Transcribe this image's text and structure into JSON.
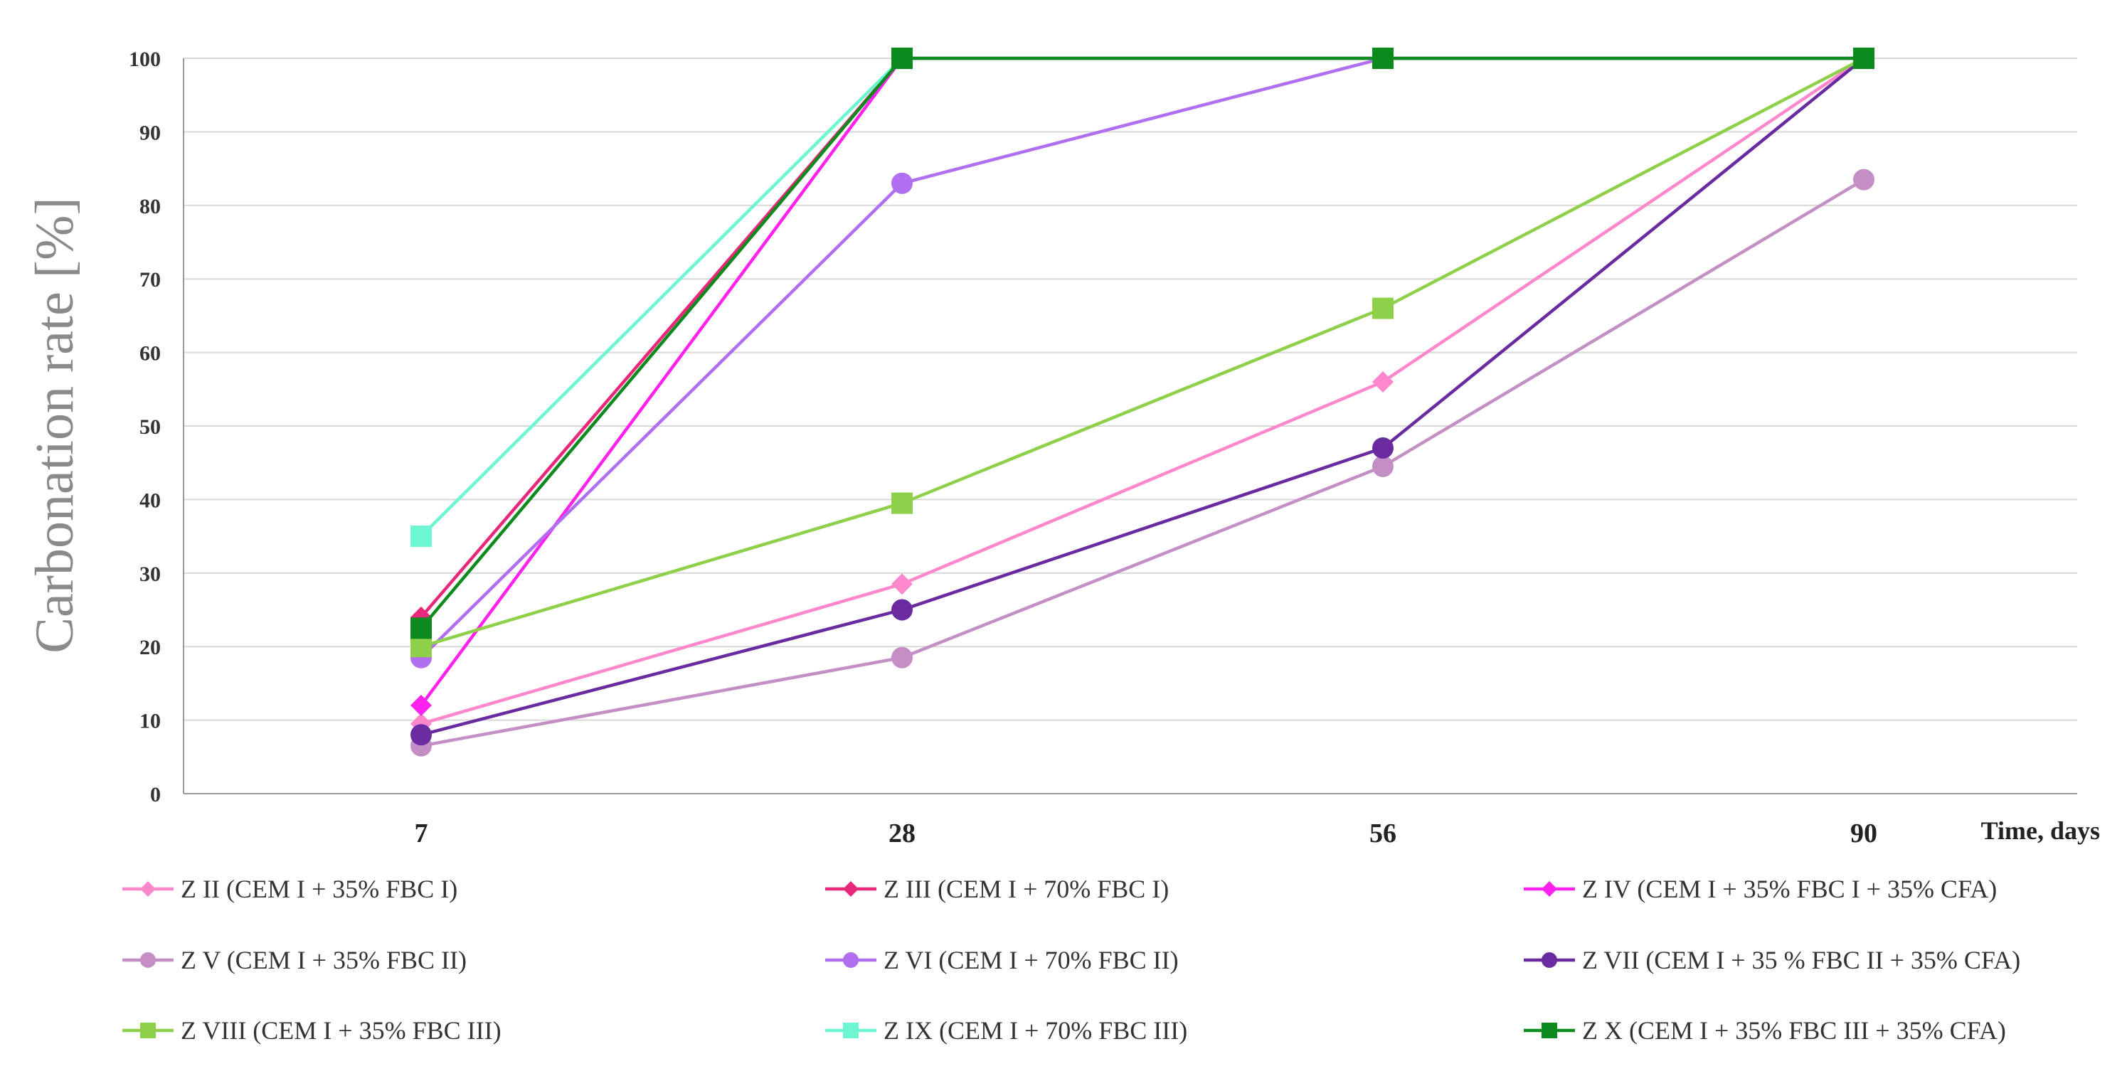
{
  "chart_data": {
    "type": "line",
    "xlabel": "Time, days",
    "ylabel": "Carbonation rate [%]",
    "x": [
      7,
      28,
      56,
      90
    ],
    "x_tick_labels": [
      "7",
      "28",
      "56",
      "90"
    ],
    "ylim": [
      0,
      100
    ],
    "y_ticks": [
      "0",
      "10",
      "20",
      "30",
      "40",
      "50",
      "60",
      "70",
      "80",
      "90",
      "100"
    ],
    "grid": "horizontal",
    "legend_position": "bottom",
    "series": [
      {
        "name": "Z II (CEM I + 35% FBC I)",
        "values": [
          9.5,
          28.5,
          56,
          100
        ],
        "color": "#ff88cc",
        "marker": "diamond"
      },
      {
        "name": "Z III (CEM I + 70% FBC I)",
        "values": [
          24,
          100,
          100,
          100
        ],
        "color": "#e8287a",
        "marker": "diamond"
      },
      {
        "name": "Z IV (CEM I + 35% FBC I + 35% CFA)",
        "values": [
          12,
          100,
          100,
          100
        ],
        "color": "#ff22ee",
        "marker": "diamond"
      },
      {
        "name": "Z V (CEM I + 35% FBC II)",
        "values": [
          6.5,
          18.5,
          44.5,
          83.5
        ],
        "color": "#c48fc4",
        "marker": "circle"
      },
      {
        "name": "Z VI (CEM I + 70% FBC II)",
        "values": [
          18.5,
          83,
          100,
          100
        ],
        "color": "#b06ef0",
        "marker": "circle"
      },
      {
        "name": "Z VII (CEM I + 35 % FBC II + 35% CFA)",
        "values": [
          8,
          25,
          47,
          100
        ],
        "color": "#6a2aa0",
        "marker": "circle"
      },
      {
        "name": "Z VIII (CEM I + 35% FBC III)",
        "values": [
          20,
          39.5,
          66,
          100
        ],
        "color": "#8ed04a",
        "marker": "square"
      },
      {
        "name": "Z IX (CEM I + 70% FBC III)",
        "values": [
          35,
          100,
          100,
          100
        ],
        "color": "#6ef5d2",
        "marker": "square"
      },
      {
        "name": "Z X (CEM I + 35% FBC III + 35% CFA)",
        "values": [
          22.5,
          100,
          100,
          100
        ],
        "color": "#0d8a1e",
        "marker": "square"
      }
    ]
  }
}
